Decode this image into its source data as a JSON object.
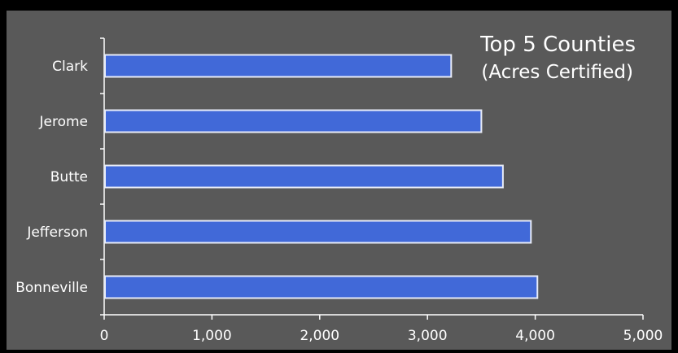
{
  "chart_data": {
    "type": "bar",
    "orientation": "horizontal",
    "title": "Top 5 Counties",
    "subtitle": "(Acres Certified)",
    "categories": [
      "Clark",
      "Jerome",
      "Butte",
      "Jefferson",
      "Bonneville"
    ],
    "values": [
      3220,
      3500,
      3700,
      3960,
      4020
    ],
    "xlim": [
      0,
      5000
    ],
    "xticks": [
      "0",
      "1,000",
      "2,000",
      "3,000",
      "4,000",
      "5,000"
    ],
    "xtick_values": [
      0,
      1000,
      2000,
      3000,
      4000,
      5000
    ],
    "grid": false,
    "legend": "none",
    "colors": {
      "bar_fill": "#4169d8",
      "bar_stroke": "#e8ecf8",
      "background": "#595959",
      "frame": "#000000",
      "axis": "#ffffff",
      "text": "#ffffff"
    }
  }
}
